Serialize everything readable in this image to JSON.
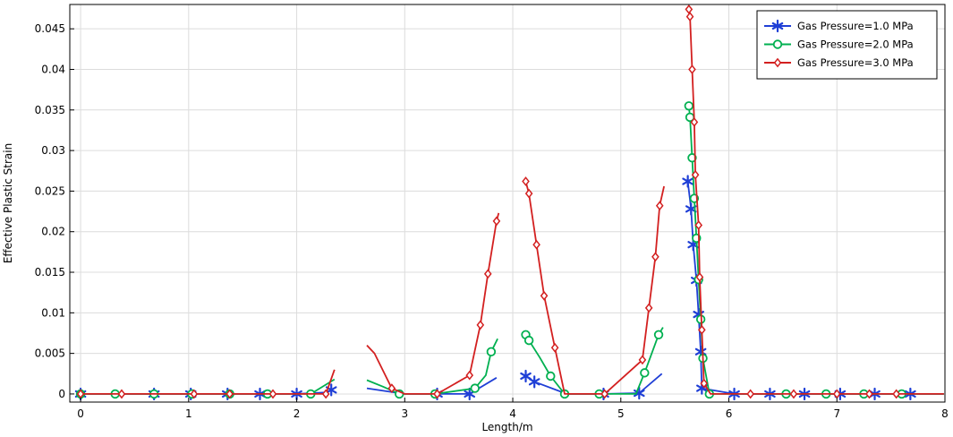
{
  "chart_data": {
    "type": "line",
    "xlabel": "Length/m",
    "ylabel": "Effective Plastic Strain",
    "xlim": [
      -0.1,
      8.0
    ],
    "ylim": [
      -0.001,
      0.048
    ],
    "xticks": [
      "0",
      "1",
      "2",
      "3",
      "4",
      "5",
      "6",
      "7",
      "8"
    ],
    "yticks": [
      "0",
      "0.005",
      "0.01",
      "0.015",
      "0.02",
      "0.025",
      "0.03",
      "0.035",
      "0.04",
      "0.045"
    ],
    "grid": true,
    "legend_position": "top-right",
    "series": [
      {
        "name": "Gas Pressure=1.0 MPa",
        "color": "#1f3fd6",
        "marker": "asterisk",
        "segments": [
          [
            [
              0,
              0
            ],
            [
              0.3,
              0
            ],
            [
              0.68,
              0
            ],
            [
              1.02,
              0
            ],
            [
              1.36,
              0
            ],
            [
              1.66,
              0
            ],
            [
              2.0,
              0
            ],
            [
              2.28,
              0.0002
            ],
            [
              2.32,
              0.0005
            ]
          ],
          [
            [
              2.65,
              0.0007
            ],
            [
              2.9,
              0.0002
            ],
            [
              3.0,
              0
            ],
            [
              3.3,
              0
            ],
            [
              3.6,
              0
            ],
            [
              3.85,
              0.002
            ]
          ],
          [
            [
              4.12,
              0.0022
            ],
            [
              4.2,
              0.0015
            ],
            [
              4.5,
              0
            ],
            [
              4.84,
              0
            ],
            [
              5.17,
              0.0001
            ],
            [
              5.38,
              0.0025
            ]
          ],
          [
            [
              5.62,
              0.0262
            ],
            [
              5.65,
              0.0228
            ],
            [
              5.67,
              0.0184
            ],
            [
              5.7,
              0.014
            ],
            [
              5.72,
              0.0098
            ],
            [
              5.74,
              0.0052
            ],
            [
              5.75,
              0.0007
            ],
            [
              6.05,
              0
            ],
            [
              6.38,
              0
            ],
            [
              6.7,
              0
            ],
            [
              7.03,
              0
            ],
            [
              7.35,
              0
            ],
            [
              7.68,
              0
            ],
            [
              7.99,
              0
            ]
          ]
        ],
        "markers": [
          [
            0,
            0
          ],
          [
            0.68,
            0
          ],
          [
            1.02,
            0
          ],
          [
            1.36,
            0
          ],
          [
            1.66,
            0
          ],
          [
            2.0,
            0
          ],
          [
            2.32,
            0.0005
          ],
          [
            3.3,
            0
          ],
          [
            3.6,
            0
          ],
          [
            4.12,
            0.0022
          ],
          [
            4.2,
            0.0015
          ],
          [
            4.84,
            0
          ],
          [
            5.17,
            0.0001
          ],
          [
            5.62,
            0.0262
          ],
          [
            5.65,
            0.0228
          ],
          [
            5.67,
            0.0184
          ],
          [
            5.7,
            0.014
          ],
          [
            5.72,
            0.0098
          ],
          [
            5.74,
            0.0052
          ],
          [
            5.75,
            0.0007
          ],
          [
            6.05,
            0
          ],
          [
            6.38,
            0
          ],
          [
            6.7,
            0
          ],
          [
            7.03,
            0
          ],
          [
            7.35,
            0
          ],
          [
            7.68,
            0
          ]
        ]
      },
      {
        "name": "Gas Pressure=2.0 MPa",
        "color": "#00b050",
        "marker": "circle",
        "segments": [
          [
            [
              0,
              0
            ],
            [
              0.32,
              0
            ],
            [
              0.68,
              0
            ],
            [
              1.03,
              0
            ],
            [
              1.38,
              0
            ],
            [
              1.73,
              0
            ],
            [
              2.13,
              0
            ],
            [
              2.35,
              0.0018
            ]
          ],
          [
            [
              2.65,
              0.0017
            ],
            [
              2.8,
              0.0009
            ],
            [
              2.95,
              0
            ],
            [
              3.28,
              0
            ],
            [
              3.65,
              0.0007
            ],
            [
              3.75,
              0.0023
            ],
            [
              3.8,
              0.0052
            ],
            [
              3.86,
              0.0068
            ]
          ],
          [
            [
              4.12,
              0.0073
            ],
            [
              4.15,
              0.0066
            ],
            [
              4.25,
              0.0045
            ],
            [
              4.35,
              0.0022
            ],
            [
              4.48,
              0
            ],
            [
              4.8,
              0
            ],
            [
              5.14,
              0
            ],
            [
              5.22,
              0.0026
            ],
            [
              5.35,
              0.0073
            ],
            [
              5.39,
              0.0082
            ]
          ],
          [
            [
              5.63,
              0.0355
            ],
            [
              5.64,
              0.0341
            ],
            [
              5.66,
              0.0291
            ],
            [
              5.68,
              0.0241
            ],
            [
              5.7,
              0.0192
            ],
            [
              5.72,
              0.0141
            ],
            [
              5.74,
              0.0092
            ],
            [
              5.76,
              0.0044
            ],
            [
              5.82,
              0
            ],
            [
              6.17,
              0
            ],
            [
              6.53,
              0
            ],
            [
              6.9,
              0
            ],
            [
              7.25,
              0
            ],
            [
              7.6,
              0
            ],
            [
              7.99,
              0
            ]
          ]
        ],
        "markers": [
          [
            0,
            0
          ],
          [
            0.32,
            0
          ],
          [
            0.68,
            0
          ],
          [
            1.03,
            0
          ],
          [
            1.38,
            0
          ],
          [
            1.73,
            0
          ],
          [
            2.13,
            0
          ],
          [
            2.95,
            0
          ],
          [
            3.28,
            0
          ],
          [
            3.65,
            0.0007
          ],
          [
            3.8,
            0.0052
          ],
          [
            4.12,
            0.0073
          ],
          [
            4.15,
            0.0066
          ],
          [
            4.35,
            0.0022
          ],
          [
            4.48,
            0
          ],
          [
            4.8,
            0
          ],
          [
            5.22,
            0.0026
          ],
          [
            5.35,
            0.0073
          ],
          [
            5.63,
            0.0355
          ],
          [
            5.64,
            0.0341
          ],
          [
            5.66,
            0.0291
          ],
          [
            5.68,
            0.0241
          ],
          [
            5.7,
            0.0192
          ],
          [
            5.72,
            0.0141
          ],
          [
            5.74,
            0.0092
          ],
          [
            5.76,
            0.0044
          ],
          [
            5.82,
            0
          ],
          [
            6.53,
            0
          ],
          [
            6.9,
            0
          ],
          [
            7.25,
            0
          ],
          [
            7.6,
            0
          ]
        ]
      },
      {
        "name": "Gas Pressure=3.0 MPa",
        "color": "#d32020",
        "marker": "diamond",
        "segments": [
          [
            [
              0,
              0
            ],
            [
              0.38,
              0
            ],
            [
              0.7,
              0
            ],
            [
              1.05,
              0
            ],
            [
              1.38,
              0
            ],
            [
              1.78,
              0
            ],
            [
              2.27,
              0
            ],
            [
              2.35,
              0.003
            ]
          ],
          [
            [
              2.65,
              0.006
            ],
            [
              2.72,
              0.005
            ],
            [
              2.88,
              0.0007
            ],
            [
              3.0,
              0
            ],
            [
              3.3,
              0
            ],
            [
              3.6,
              0.0023
            ],
            [
              3.7,
              0.0085
            ],
            [
              3.77,
              0.0148
            ],
            [
              3.85,
              0.0213
            ],
            [
              3.87,
              0.0223
            ]
          ],
          [
            [
              4.12,
              0.0262
            ],
            [
              4.15,
              0.0247
            ],
            [
              4.22,
              0.0184
            ],
            [
              4.29,
              0.0121
            ],
            [
              4.39,
              0.0057
            ],
            [
              4.48,
              0
            ],
            [
              4.85,
              0
            ],
            [
              5.2,
              0.0042
            ],
            [
              5.26,
              0.0106
            ],
            [
              5.32,
              0.0169
            ],
            [
              5.36,
              0.0232
            ],
            [
              5.4,
              0.0256
            ]
          ],
          [
            [
              5.63,
              0.0474
            ],
            [
              5.64,
              0.0465
            ],
            [
              5.66,
              0.04
            ],
            [
              5.68,
              0.0335
            ],
            [
              5.69,
              0.027
            ],
            [
              5.72,
              0.0208
            ],
            [
              5.73,
              0.0144
            ],
            [
              5.75,
              0.0079
            ],
            [
              5.77,
              0.0013
            ],
            [
              5.83,
              0
            ],
            [
              6.2,
              0
            ],
            [
              6.6,
              0
            ],
            [
              7.0,
              0
            ],
            [
              7.3,
              0
            ],
            [
              7.55,
              0
            ],
            [
              7.99,
              0
            ]
          ]
        ],
        "markers": [
          [
            0,
            0
          ],
          [
            0.38,
            0
          ],
          [
            1.05,
            0
          ],
          [
            1.38,
            0
          ],
          [
            1.78,
            0
          ],
          [
            2.27,
            0
          ],
          [
            2.88,
            0.0007
          ],
          [
            3.3,
            0
          ],
          [
            3.6,
            0.0023
          ],
          [
            3.7,
            0.0085
          ],
          [
            3.77,
            0.0148
          ],
          [
            3.85,
            0.0213
          ],
          [
            4.12,
            0.0262
          ],
          [
            4.15,
            0.0247
          ],
          [
            4.22,
            0.0184
          ],
          [
            4.29,
            0.0121
          ],
          [
            4.39,
            0.0057
          ],
          [
            4.85,
            0
          ],
          [
            5.2,
            0.0042
          ],
          [
            5.26,
            0.0106
          ],
          [
            5.32,
            0.0169
          ],
          [
            5.36,
            0.0232
          ],
          [
            5.63,
            0.0474
          ],
          [
            5.64,
            0.0465
          ],
          [
            5.66,
            0.04
          ],
          [
            5.68,
            0.0335
          ],
          [
            5.69,
            0.027
          ],
          [
            5.72,
            0.0208
          ],
          [
            5.73,
            0.0144
          ],
          [
            5.75,
            0.0079
          ],
          [
            5.77,
            0.0013
          ],
          [
            6.2,
            0
          ],
          [
            6.6,
            0
          ],
          [
            7.0,
            0
          ],
          [
            7.3,
            0
          ],
          [
            7.55,
            0
          ]
        ]
      }
    ]
  }
}
